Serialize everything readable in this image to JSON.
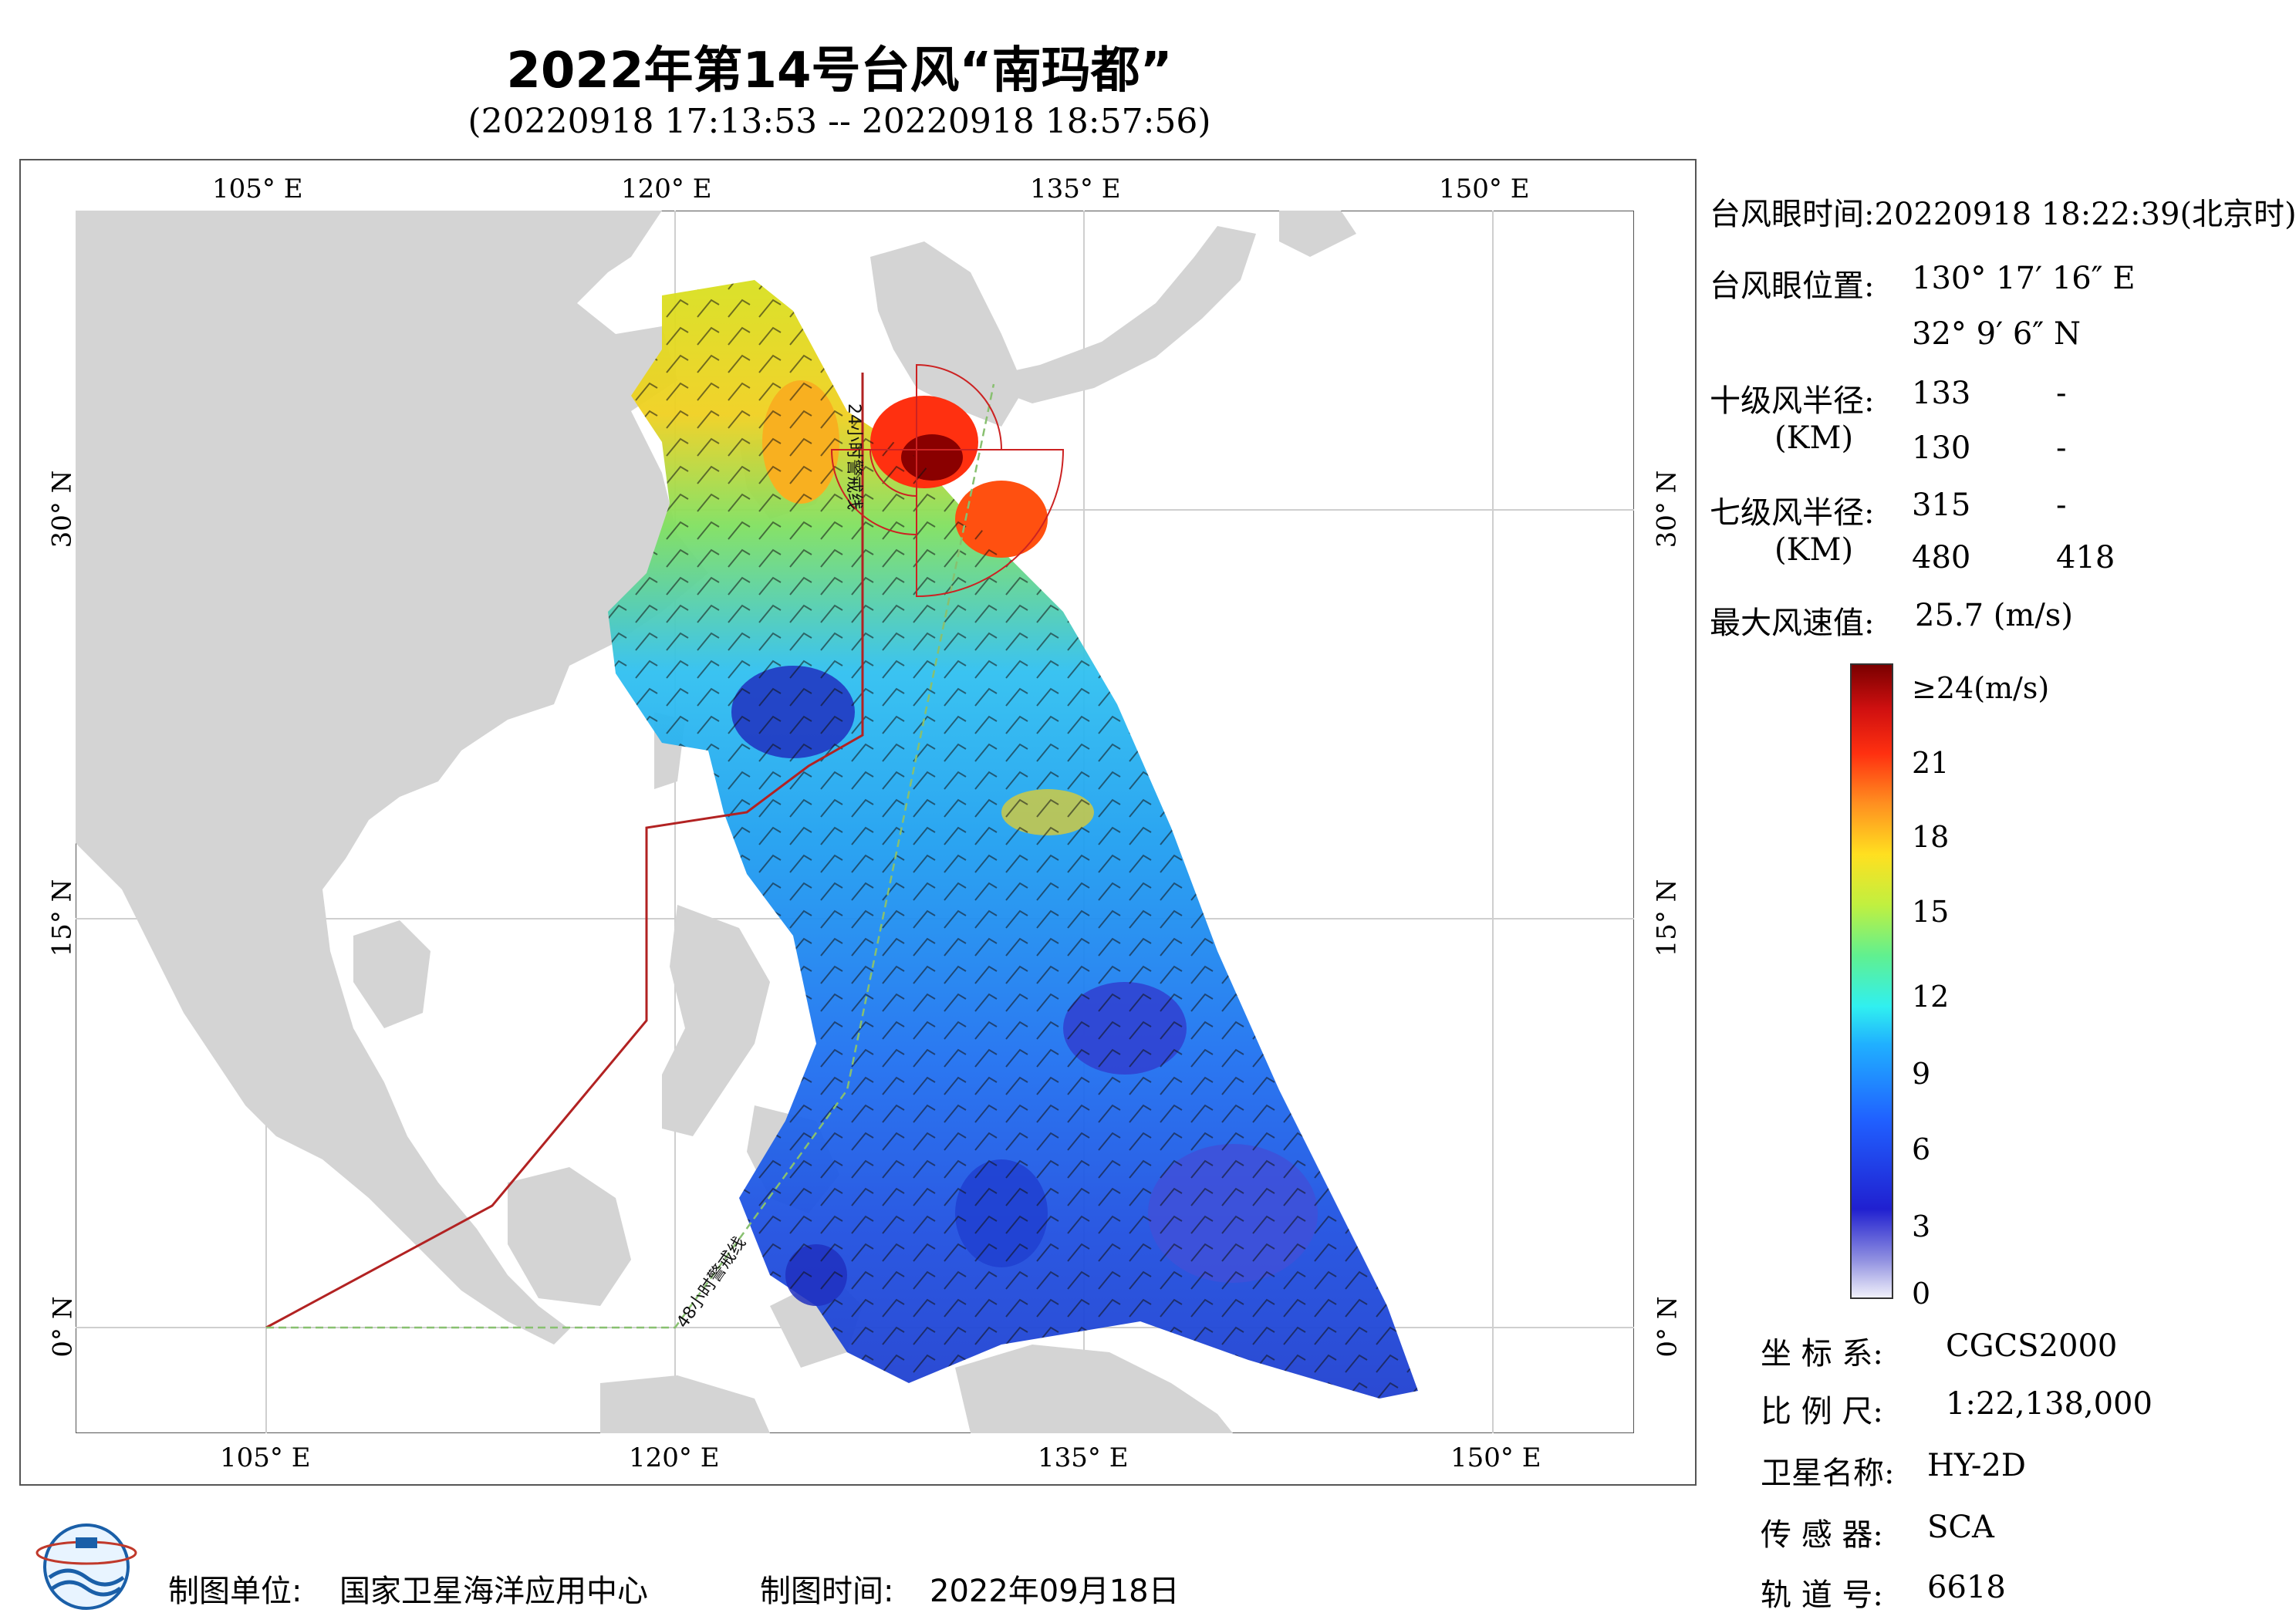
{
  "header": {
    "title": "2022年第14号台风“南玛都”",
    "time_range": "(20220918 17:13:53 -- 20220918 18:57:56)"
  },
  "axes": {
    "lon_top": [
      "105° E",
      "120° E",
      "135° E",
      "150° E"
    ],
    "lon_bottom": [
      "105° E",
      "120° E",
      "135° E",
      "150° E"
    ],
    "lat_left": [
      "30° N",
      "15° N",
      "0° N"
    ],
    "lat_right": [
      "30° N",
      "15° N",
      "0° N"
    ]
  },
  "map": {
    "line_24h": "24小时警戒线",
    "line_48h": "48小时警戒线",
    "colors": {
      "land": "#d4d4d4",
      "sea": "#ffffff",
      "warning_24h": "#b22222",
      "warning_48h": "#88c070",
      "wind_radii": "#cc2222"
    }
  },
  "info": {
    "eye_time_label": "台风眼时间:",
    "eye_time_value": "20220918 18:22:39(北京时)",
    "eye_pos_label": "台风眼位置:",
    "eye_lon": "130° 17′ 16″ E",
    "eye_lat": "32° 9′ 6″ N",
    "r10_label": "十级风半径:",
    "r10_unit": "(KM)",
    "r10_row1": [
      "133",
      "-"
    ],
    "r10_row2": [
      "130",
      "-"
    ],
    "r7_label": "七级风半径:",
    "r7_unit": "(KM)",
    "r7_row1": [
      "315",
      "-"
    ],
    "r7_row2": [
      "480",
      "418"
    ],
    "max_label": "最大风速值:",
    "max_value": "25.7  (m/s)"
  },
  "colorbar": {
    "ticks": [
      "≥24(m/s)",
      "21",
      "18",
      "15",
      "12",
      "9",
      "6",
      "3",
      "0"
    ],
    "stops": [
      "#e8e8f8",
      "#8f8fe0",
      "#2020d0",
      "#2060ff",
      "#20b0ff",
      "#30f0f0",
      "#60f090",
      "#c0f040",
      "#ffe020",
      "#ff9020",
      "#ff3010",
      "#d01010",
      "#7a0000"
    ]
  },
  "meta": {
    "crs_label": "坐 标 系:",
    "crs_value": "CGCS2000",
    "scale_label": "比 例 尺:",
    "scale_value": "1:22,138,000",
    "sat_label": "卫星名称:",
    "sat_value": "HY-2D",
    "sensor_label": "传 感 器:",
    "sensor_value": "SCA",
    "orbit_label": "轨 道 号:",
    "orbit_value": "6618"
  },
  "footer": {
    "producer_label": "制图单位:",
    "producer_value": "国家卫星海洋应用中心",
    "date_label": "制图时间:",
    "date_value": "2022年09月18日"
  }
}
